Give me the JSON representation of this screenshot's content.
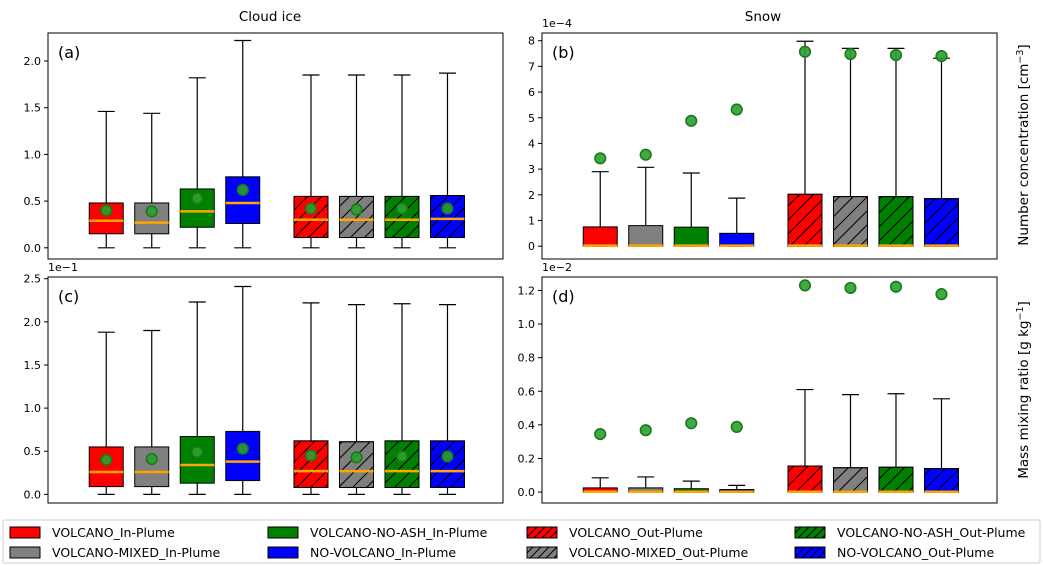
{
  "colors": {
    "VOLCANO": "#ff0000",
    "VOLCANO-MIXED": "#808080",
    "VOLCANO-NO-ASH": "#008000",
    "NO-VOLCANO": "#0000ff",
    "median": "#ffa500",
    "mean_marker": "#2ca02c"
  },
  "column_titles": [
    "Cloud ice",
    "Snow"
  ],
  "row_labels": [
    "Number concentration [cm$^{-3}$]",
    "Mass mixing ratio [g kg$^{-1}$]"
  ],
  "legend": [
    {
      "label": "VOLCANO_In-Plume",
      "group": "VOLCANO",
      "hatch": false
    },
    {
      "label": "VOLCANO-MIXED_In-Plume",
      "group": "VOLCANO-MIXED",
      "hatch": false
    },
    {
      "label": "VOLCANO-NO-ASH_In-Plume",
      "group": "VOLCANO-NO-ASH",
      "hatch": false
    },
    {
      "label": "NO-VOLCANO_In-Plume",
      "group": "NO-VOLCANO",
      "hatch": false
    },
    {
      "label": "VOLCANO_Out-Plume",
      "group": "VOLCANO",
      "hatch": true
    },
    {
      "label": "VOLCANO-MIXED_Out-Plume",
      "group": "VOLCANO-MIXED",
      "hatch": true
    },
    {
      "label": "VOLCANO-NO-ASH_Out-Plume",
      "group": "VOLCANO-NO-ASH",
      "hatch": true
    },
    {
      "label": "NO-VOLCANO_Out-Plume",
      "group": "NO-VOLCANO",
      "hatch": true
    }
  ],
  "chart_data": [
    {
      "panel": "(a)",
      "type": "box",
      "title": "Cloud ice",
      "ylabel": "",
      "offset_text": "",
      "ylim": [
        -0.12,
        2.3
      ],
      "yticks": [
        0.0,
        0.5,
        1.0,
        1.5,
        2.0
      ],
      "ytick_labels": [
        "0.0",
        "0.5",
        "1.0",
        "1.5",
        "2.0"
      ],
      "boxes": [
        {
          "group": "VOLCANO",
          "plume": "In-Plume",
          "whislo": 0,
          "q1": 0.15,
          "med": 0.29,
          "q3": 0.48,
          "whishi": 1.46,
          "mean": 0.4
        },
        {
          "group": "VOLCANO-MIXED",
          "plume": "In-Plume",
          "whislo": 0,
          "q1": 0.15,
          "med": 0.27,
          "q3": 0.48,
          "whishi": 1.44,
          "mean": 0.39
        },
        {
          "group": "VOLCANO-NO-ASH",
          "plume": "In-Plume",
          "whislo": 0,
          "q1": 0.22,
          "med": 0.39,
          "q3": 0.63,
          "whishi": 1.82,
          "mean": 0.53
        },
        {
          "group": "NO-VOLCANO",
          "plume": "In-Plume",
          "whislo": 0,
          "q1": 0.26,
          "med": 0.48,
          "q3": 0.76,
          "whishi": 2.22,
          "mean": 0.62
        },
        {
          "group": "VOLCANO",
          "plume": "Out-Plume",
          "whislo": 0,
          "q1": 0.11,
          "med": 0.3,
          "q3": 0.55,
          "whishi": 1.85,
          "mean": 0.42
        },
        {
          "group": "VOLCANO-MIXED",
          "plume": "Out-Plume",
          "whislo": 0,
          "q1": 0.11,
          "med": 0.3,
          "q3": 0.55,
          "whishi": 1.85,
          "mean": 0.41
        },
        {
          "group": "VOLCANO-NO-ASH",
          "plume": "Out-Plume",
          "whislo": 0,
          "q1": 0.11,
          "med": 0.3,
          "q3": 0.55,
          "whishi": 1.85,
          "mean": 0.42
        },
        {
          "group": "NO-VOLCANO",
          "plume": "Out-Plume",
          "whislo": 0,
          "q1": 0.11,
          "med": 0.31,
          "q3": 0.56,
          "whishi": 1.87,
          "mean": 0.42
        }
      ]
    },
    {
      "panel": "(b)",
      "type": "box",
      "title": "Snow",
      "ylabel": "Number concentration [cm$^{-3}$]",
      "offset_text": "1e−4",
      "ylim": [
        -0.5,
        8.3
      ],
      "yticks": [
        0,
        1,
        2,
        3,
        4,
        5,
        6,
        7,
        8
      ],
      "ytick_labels": [
        "0",
        "1",
        "2",
        "3",
        "4",
        "5",
        "6",
        "7",
        "8"
      ],
      "boxes": [
        {
          "group": "VOLCANO",
          "plume": "In-Plume",
          "whislo": 0,
          "q1": 0,
          "med": 0.02,
          "q3": 0.75,
          "whishi": 2.9,
          "mean": 3.42
        },
        {
          "group": "VOLCANO-MIXED",
          "plume": "In-Plume",
          "whislo": 0,
          "q1": 0,
          "med": 0.02,
          "q3": 0.8,
          "whishi": 3.07,
          "mean": 3.56
        },
        {
          "group": "VOLCANO-NO-ASH",
          "plume": "In-Plume",
          "whislo": 0,
          "q1": 0,
          "med": 0.02,
          "q3": 0.74,
          "whishi": 2.85,
          "mean": 4.88
        },
        {
          "group": "NO-VOLCANO",
          "plume": "In-Plume",
          "whislo": 0,
          "q1": 0,
          "med": 0.02,
          "q3": 0.5,
          "whishi": 1.87,
          "mean": 5.32
        },
        {
          "group": "VOLCANO",
          "plume": "Out-Plume",
          "whislo": 0,
          "q1": 0,
          "med": 0.02,
          "q3": 2.02,
          "whishi": 7.98,
          "mean": 7.57
        },
        {
          "group": "VOLCANO-MIXED",
          "plume": "Out-Plume",
          "whislo": 0,
          "q1": 0,
          "med": 0.02,
          "q3": 1.93,
          "whishi": 7.7,
          "mean": 7.48
        },
        {
          "group": "VOLCANO-NO-ASH",
          "plume": "Out-Plume",
          "whislo": 0,
          "q1": 0,
          "med": 0.02,
          "q3": 1.93,
          "whishi": 7.7,
          "mean": 7.44
        },
        {
          "group": "NO-VOLCANO",
          "plume": "Out-Plume",
          "whislo": 0,
          "q1": 0,
          "med": 0.02,
          "q3": 1.85,
          "whishi": 7.32,
          "mean": 7.4
        }
      ]
    },
    {
      "panel": "(c)",
      "type": "box",
      "title": "",
      "ylabel": "",
      "offset_text": "1e−1",
      "ylim": [
        -0.1,
        2.52
      ],
      "yticks": [
        0.0,
        0.5,
        1.0,
        1.5,
        2.0,
        2.5
      ],
      "ytick_labels": [
        "0.0",
        "0.5",
        "1.0",
        "1.5",
        "2.0",
        "2.5"
      ],
      "boxes": [
        {
          "group": "VOLCANO",
          "plume": "In-Plume",
          "whislo": 0,
          "q1": 0.09,
          "med": 0.26,
          "q3": 0.55,
          "whishi": 1.88,
          "mean": 0.4
        },
        {
          "group": "VOLCANO-MIXED",
          "plume": "In-Plume",
          "whislo": 0,
          "q1": 0.09,
          "med": 0.26,
          "q3": 0.55,
          "whishi": 1.9,
          "mean": 0.41
        },
        {
          "group": "VOLCANO-NO-ASH",
          "plume": "In-Plume",
          "whislo": 0,
          "q1": 0.13,
          "med": 0.34,
          "q3": 0.67,
          "whishi": 2.23,
          "mean": 0.49
        },
        {
          "group": "NO-VOLCANO",
          "plume": "In-Plume",
          "whislo": 0,
          "q1": 0.16,
          "med": 0.38,
          "q3": 0.73,
          "whishi": 2.41,
          "mean": 0.53
        },
        {
          "group": "VOLCANO",
          "plume": "Out-Plume",
          "whislo": 0,
          "q1": 0.08,
          "med": 0.27,
          "q3": 0.62,
          "whishi": 2.22,
          "mean": 0.45
        },
        {
          "group": "VOLCANO-MIXED",
          "plume": "Out-Plume",
          "whislo": 0,
          "q1": 0.08,
          "med": 0.27,
          "q3": 0.61,
          "whishi": 2.2,
          "mean": 0.43
        },
        {
          "group": "VOLCANO-NO-ASH",
          "plume": "Out-Plume",
          "whislo": 0,
          "q1": 0.08,
          "med": 0.27,
          "q3": 0.62,
          "whishi": 2.21,
          "mean": 0.44
        },
        {
          "group": "NO-VOLCANO",
          "plume": "Out-Plume",
          "whislo": 0,
          "q1": 0.08,
          "med": 0.27,
          "q3": 0.62,
          "whishi": 2.2,
          "mean": 0.44
        }
      ]
    },
    {
      "panel": "(d)",
      "type": "box",
      "title": "",
      "ylabel": "Mass mixing ratio [g kg$^{-1}$]",
      "offset_text": "1e−2",
      "ylim": [
        -0.065,
        1.28
      ],
      "yticks": [
        0.0,
        0.2,
        0.4,
        0.6,
        0.8,
        1.0,
        1.2
      ],
      "ytick_labels": [
        "0.0",
        "0.2",
        "0.4",
        "0.6",
        "0.8",
        "1.0",
        "1.2"
      ],
      "boxes": [
        {
          "group": "VOLCANO",
          "plume": "In-Plume",
          "whislo": 0,
          "q1": 0,
          "med": 0.002,
          "q3": 0.025,
          "whishi": 0.085,
          "mean": 0.345
        },
        {
          "group": "VOLCANO-MIXED",
          "plume": "In-Plume",
          "whislo": 0,
          "q1": 0,
          "med": 0.002,
          "q3": 0.025,
          "whishi": 0.09,
          "mean": 0.368
        },
        {
          "group": "VOLCANO-NO-ASH",
          "plume": "In-Plume",
          "whislo": 0,
          "q1": 0,
          "med": 0.002,
          "q3": 0.02,
          "whishi": 0.065,
          "mean": 0.41
        },
        {
          "group": "NO-VOLCANO",
          "plume": "In-Plume",
          "whislo": 0,
          "q1": 0,
          "med": 0.002,
          "q3": 0.015,
          "whishi": 0.04,
          "mean": 0.388
        },
        {
          "group": "VOLCANO",
          "plume": "Out-Plume",
          "whislo": 0,
          "q1": 0,
          "med": 0.002,
          "q3": 0.155,
          "whishi": 0.61,
          "mean": 1.23
        },
        {
          "group": "VOLCANO-MIXED",
          "plume": "Out-Plume",
          "whislo": 0,
          "q1": 0,
          "med": 0.002,
          "q3": 0.145,
          "whishi": 0.58,
          "mean": 1.215
        },
        {
          "group": "VOLCANO-NO-ASH",
          "plume": "Out-Plume",
          "whislo": 0,
          "q1": 0,
          "med": 0.002,
          "q3": 0.148,
          "whishi": 0.585,
          "mean": 1.222
        },
        {
          "group": "NO-VOLCANO",
          "plume": "Out-Plume",
          "whislo": 0,
          "q1": 0,
          "med": 0.002,
          "q3": 0.14,
          "whishi": 0.555,
          "mean": 1.178
        }
      ]
    }
  ]
}
